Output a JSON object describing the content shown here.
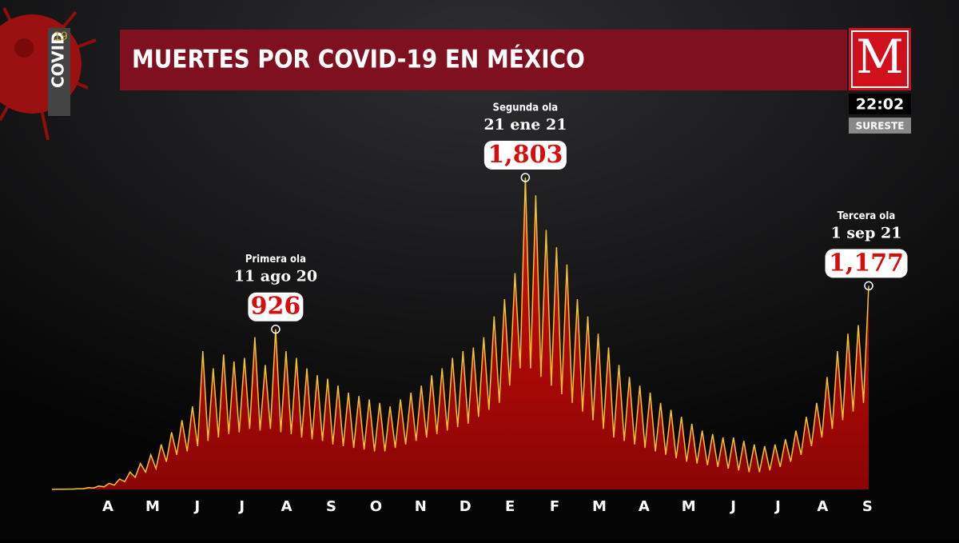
{
  "header": {
    "title": "MUERTES POR COVID-19 EN MÉXICO",
    "badge": "COVID",
    "badge_number": "19",
    "logo": "M",
    "time": "22:02",
    "region": "SURESTE"
  },
  "chart_data": {
    "type": "area",
    "line_color": "#f2c32a",
    "color": "#c40a0a",
    "x_labels": [
      "A",
      "M",
      "J",
      "J",
      "A",
      "S",
      "O",
      "N",
      "D",
      "E",
      "F",
      "M",
      "A",
      "M",
      "J",
      "J",
      "A",
      "S"
    ],
    "values": [
      0,
      1,
      1,
      2,
      2,
      4,
      4,
      10,
      8,
      20,
      15,
      35,
      25,
      60,
      45,
      100,
      70,
      150,
      100,
      200,
      120,
      260,
      160,
      330,
      200,
      400,
      220,
      480,
      250,
      800,
      280,
      700,
      300,
      780,
      320,
      740,
      330,
      760,
      350,
      880,
      340,
      720,
      350,
      926,
      330,
      800,
      320,
      760,
      300,
      700,
      290,
      660,
      280,
      640,
      260,
      600,
      250,
      560,
      240,
      540,
      230,
      520,
      220,
      500,
      220,
      480,
      240,
      520,
      260,
      560,
      280,
      600,
      300,
      660,
      320,
      700,
      340,
      760,
      360,
      800,
      380,
      820,
      420,
      880,
      460,
      1000,
      500,
      1100,
      600,
      1250,
      700,
      1803,
      700,
      1700,
      650,
      1500,
      600,
      1400,
      550,
      1300,
      500,
      1100,
      450,
      1000,
      400,
      900,
      350,
      820,
      300,
      720,
      280,
      650,
      260,
      600,
      240,
      560,
      220,
      500,
      200,
      460,
      180,
      420,
      160,
      380,
      150,
      340,
      140,
      320,
      130,
      300,
      120,
      300,
      110,
      280,
      100,
      260,
      100,
      250,
      110,
      260,
      130,
      290,
      160,
      340,
      200,
      420,
      250,
      500,
      300,
      650,
      350,
      800,
      400,
      900,
      450,
      950,
      500,
      1177
    ],
    "annotations": [
      {
        "label": "Primera ola",
        "date": "11 ago 20",
        "value": 926,
        "value_label": "926"
      },
      {
        "label": "Segunda ola",
        "date": "21 ene 21",
        "value": 1803,
        "value_label": "1,803"
      },
      {
        "label": "Tercera ola",
        "date": "1 sep 21",
        "value": 1177,
        "value_label": "1,177"
      }
    ]
  }
}
